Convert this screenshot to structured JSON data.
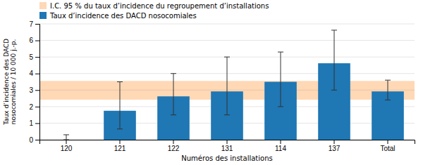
{
  "chart_data": {
    "type": "bar",
    "categories": [
      "120",
      "121",
      "122",
      "131",
      "114",
      "137",
      "Total"
    ],
    "series": [
      {
        "name": "Taux d’incidence des DACD nosocomiales",
        "values": [
          0.0,
          1.75,
          2.62,
          2.92,
          3.5,
          4.62,
          2.92
        ],
        "yerr_low": [
          0.0,
          1.1,
          1.12,
          1.42,
          1.5,
          1.62,
          0.52
        ],
        "yerr_high": [
          0.3,
          1.75,
          1.38,
          2.08,
          1.8,
          2.0,
          0.68
        ]
      }
    ],
    "band": {
      "name": "I.C. 95 % du taux d’incidence du regroupement d’installations",
      "low": 2.42,
      "high": 3.55
    },
    "xlabel": "Numéros des installations",
    "ylabel": "Taux d’incidence des DACD\nnosocomiales / 10 000 j.-p.",
    "ylim": [
      0,
      7
    ],
    "yticks": [
      0,
      1,
      2,
      3,
      4,
      5,
      6,
      7
    ],
    "grid": true,
    "legend": "top"
  }
}
